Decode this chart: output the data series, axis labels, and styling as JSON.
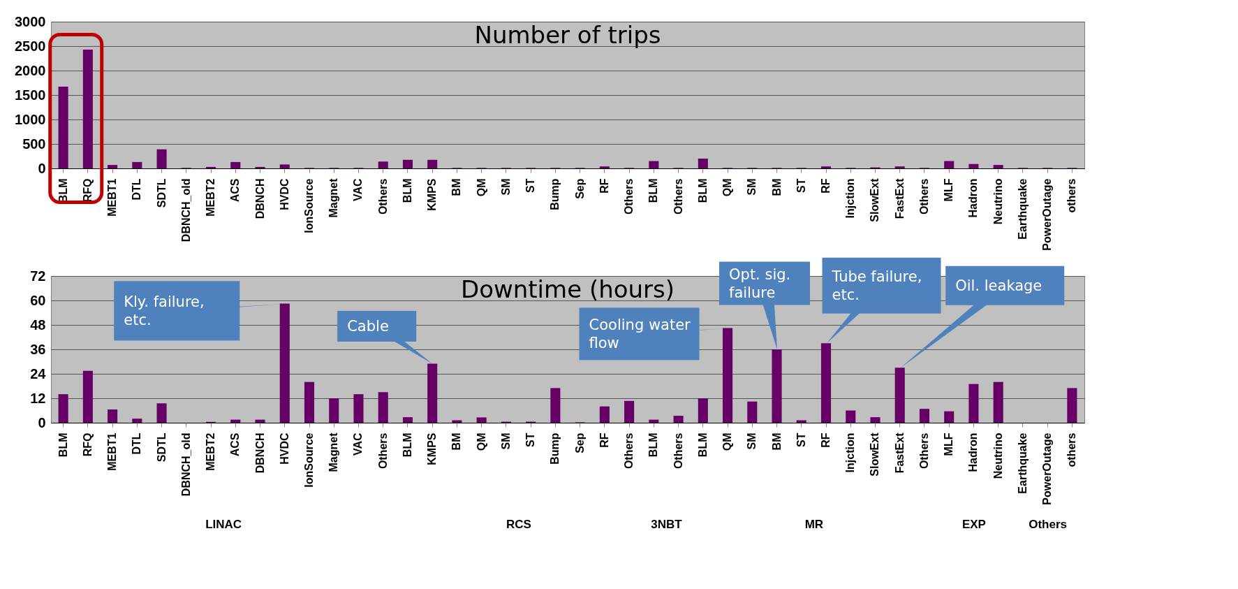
{
  "chart_data": [
    {
      "type": "bar",
      "title": "Number of trips",
      "categories": [
        "BLM",
        "RFQ",
        "MEBT1",
        "DTL",
        "SDTL",
        "DBNCH_old",
        "MEBT2",
        "ACS",
        "DBNCH",
        "HVDC",
        "IonSource",
        "Magnet",
        "VAC",
        "Others",
        "BLM",
        "KMPS",
        "BM",
        "QM",
        "SM",
        "ST",
        "Bump",
        "Sep",
        "RF",
        "Others",
        "BLM",
        "Others",
        "BLM",
        "QM",
        "SM",
        "BM",
        "ST",
        "RF",
        "Injction",
        "SlowExt",
        "FastExt",
        "Others",
        "MLF",
        "Hadron",
        "Neutrino",
        "Earthquake",
        "PowerOutage",
        "others"
      ],
      "series": [
        {
          "color": "#660066",
          "values": [
            1670,
            2430,
            70,
            130,
            390,
            10,
            30,
            130,
            30,
            80,
            10,
            10,
            10,
            140,
            175,
            175,
            10,
            10,
            10,
            10,
            10,
            10,
            40,
            10,
            150,
            10,
            200,
            10,
            10,
            10,
            10,
            40,
            10,
            20,
            40,
            10,
            150,
            90,
            70,
            10,
            10,
            10
          ]
        }
      ],
      "ylim": [
        0,
        3000
      ],
      "yticks": [
        0,
        500,
        1000,
        1500,
        2000,
        2500,
        3000
      ],
      "grid": "y"
    },
    {
      "type": "bar",
      "title": "Downtime (hours)",
      "categories": [
        "BLM",
        "RFQ",
        "MEBT1",
        "DTL",
        "SDTL",
        "DBNCH_old",
        "MEBT2",
        "ACS",
        "DBNCH",
        "HVDC",
        "IonSource",
        "Magnet",
        "VAC",
        "Others",
        "BLM",
        "KMPS",
        "BM",
        "QM",
        "SM",
        "ST",
        "Bump",
        "Sep",
        "RF",
        "Others",
        "BLM",
        "Others",
        "BLM",
        "QM",
        "SM",
        "BM",
        "ST",
        "RF",
        "Injction",
        "SlowExt",
        "FastExt",
        "Others",
        "MLF",
        "Hadron",
        "Neutrino",
        "Earthquake",
        "PowerOutage",
        "others"
      ],
      "series": [
        {
          "color": "#660066",
          "values": [
            14,
            25.5,
            6.5,
            2,
            9.5,
            0,
            0.4,
            1.5,
            1.5,
            58.5,
            20,
            12,
            14,
            15,
            2.7,
            29,
            1.2,
            2.6,
            0.5,
            0.5,
            17,
            0.2,
            8,
            10.7,
            1.5,
            3.4,
            12,
            46.5,
            10.4,
            36,
            1.2,
            39,
            6,
            2.7,
            27,
            6.8,
            5.6,
            19,
            20,
            0,
            0,
            17
          ]
        }
      ],
      "ylim": [
        0,
        72
      ],
      "yticks": [
        0,
        12,
        24,
        36,
        48,
        60,
        72
      ],
      "grid": "y",
      "annotations": [
        "Kly. failure, etc.",
        "Cable",
        "Cooling water flow",
        "Opt. sig. failure",
        "Tube failure, etc.",
        "Oil. leakage",
        "LINAC",
        "RCS",
        "3NBT",
        "MR",
        "EXP",
        "Others"
      ]
    }
  ]
}
